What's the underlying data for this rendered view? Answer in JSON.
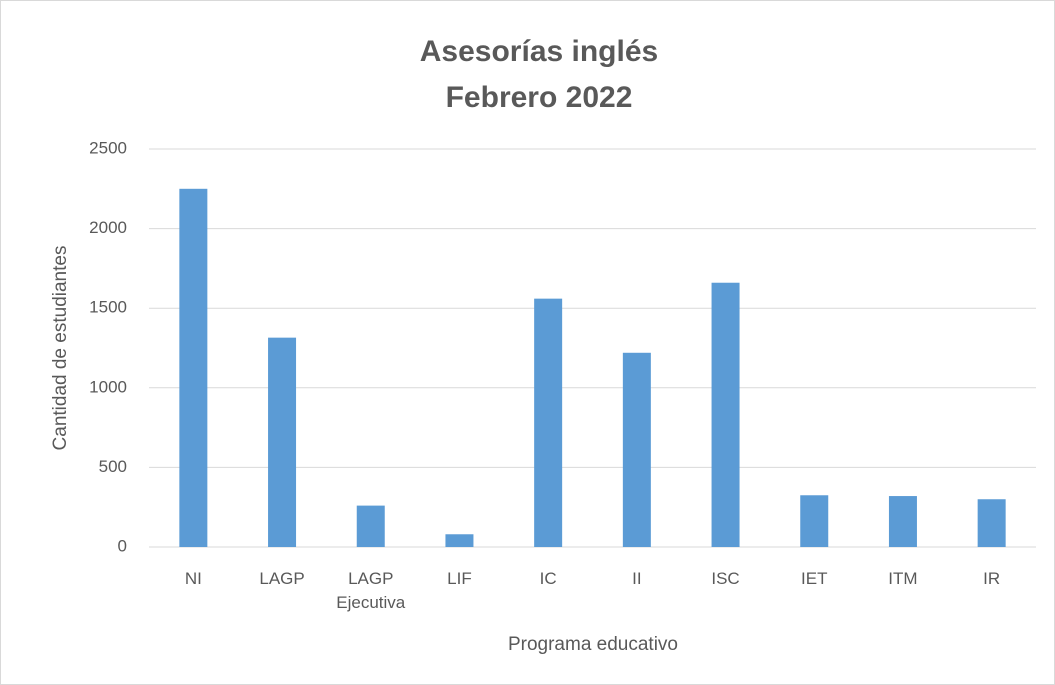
{
  "chart_data": {
    "type": "bar",
    "title": "Asesorías inglés",
    "subtitle": "Febrero 2022",
    "x_label": "Programa educativo",
    "y_label": "Cantidad de estudiantes",
    "categories": [
      "NI",
      "LAGP",
      "LAGP Ejecutiva",
      "LIF",
      "IC",
      "II",
      "ISC",
      "IET",
      "ITM",
      "IR"
    ],
    "values": [
      2250,
      1315,
      260,
      80,
      1560,
      1220,
      1660,
      325,
      320,
      300
    ],
    "color": "#5b9bd5",
    "ylim": [
      0,
      2500
    ],
    "yticks": [
      0,
      500,
      1000,
      1500,
      2000,
      2500
    ],
    "grid": true
  }
}
